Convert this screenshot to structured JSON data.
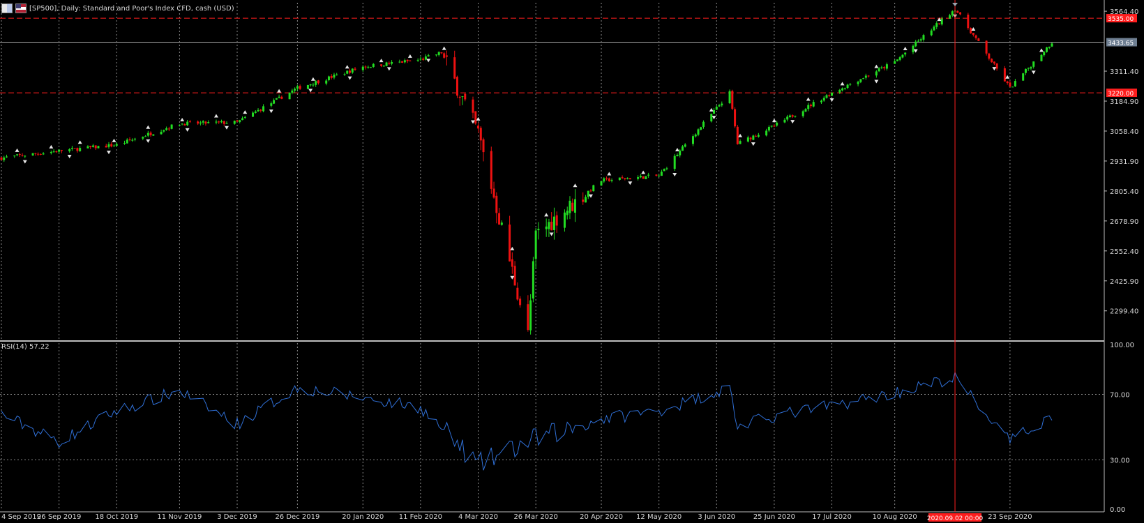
{
  "header": {
    "title": "[SP500], Daily:  Standard and Poor's Index CFD, cash (USD)",
    "flag_icons": [
      "symbol-flag-icon",
      "us-flag-icon"
    ]
  },
  "price_axis": {
    "labels": [
      "3564.40",
      "3311.40",
      "3184.90",
      "3058.40",
      "2931.90",
      "2805.40",
      "2678.90",
      "2552.40",
      "2425.90",
      "2299.40"
    ],
    "tick_values": [
      3564.4,
      3311.4,
      3184.9,
      3058.4,
      2931.9,
      2805.4,
      2678.9,
      2552.4,
      2425.9,
      2299.4
    ]
  },
  "current_price": {
    "value": 3433.65,
    "label": "3433.65"
  },
  "levels": [
    {
      "value": 3535,
      "label": "3535.00",
      "color": "#ff1e1e"
    },
    {
      "value": 3220,
      "label": "3220.00",
      "color": "#ff1e1e"
    }
  ],
  "time_axis": {
    "labels": [
      "4 Sep 2019",
      "26 Sep 2019",
      "18 Oct 2019",
      "11 Nov 2019",
      "3 Dec 2019",
      "26 Dec 2019",
      "20 Jan 2020",
      "11 Feb 2020",
      "4 Mar 2020",
      "26 Mar 2020",
      "20 Apr 2020",
      "12 May 2020",
      "3 Jun 2020",
      "25 Jun 2020",
      "17 Jul 2020",
      "10 Aug 2020",
      "23 Sep 2020"
    ],
    "crosshair_label": "2020.09.02 00:00"
  },
  "rsi": {
    "label": "RSI(14) 57.22",
    "axis_labels": [
      "100.00",
      "70.00",
      "30.00",
      "0.00"
    ],
    "axis_values": [
      100,
      70,
      30,
      0
    ],
    "color": "#2f6fd6"
  },
  "colors": {
    "bull": "#22dd22",
    "bear": "#ee1111",
    "grid": "#9a9a9a",
    "background": "#000000"
  },
  "chart_data": {
    "type": "candlestick",
    "title": "[SP500], Daily:  Standard and Poor's Index CFD, cash (USD)",
    "ylim": [
      2175,
      3600
    ],
    "anchors": [
      {
        "date": "4 Sep 2019",
        "close": 2945
      },
      {
        "date": "26 Sep 2019",
        "close": 2975
      },
      {
        "date": "18 Oct 2019",
        "close": 3000
      },
      {
        "date": "11 Nov 2019",
        "close": 3090
      },
      {
        "date": "3 Dec 2019",
        "close": 3095
      },
      {
        "date": "26 Dec 2019",
        "close": 3240
      },
      {
        "date": "20 Jan 2020",
        "close": 3330
      },
      {
        "date": "11 Feb 2020",
        "close": 3360
      },
      {
        "date": "19 Feb 2020",
        "close": 3390
      },
      {
        "date": "4 Mar 2020",
        "close": 3050
      },
      {
        "date": "23 Mar 2020",
        "close": 2200
      },
      {
        "date": "26 Mar 2020",
        "close": 2620
      },
      {
        "date": "20 Apr 2020",
        "close": 2850
      },
      {
        "date": "12 May 2020",
        "close": 2870
      },
      {
        "date": "8 Jun 2020",
        "close": 3220
      },
      {
        "date": "11 Jun 2020",
        "close": 3005
      },
      {
        "date": "25 Jun 2020",
        "close": 3080
      },
      {
        "date": "17 Jul 2020",
        "close": 3220
      },
      {
        "date": "10 Aug 2020",
        "close": 3350
      },
      {
        "date": "2 Sep 2020",
        "close": 3575
      },
      {
        "date": "23 Sep 2020",
        "close": 3240
      },
      {
        "date": "9 Oct 2020",
        "close": 3433.65
      }
    ],
    "rsi_series": {
      "name": "RSI(14)",
      "anchors": [
        {
          "date": "4 Sep 2019",
          "value": 58
        },
        {
          "date": "26 Sep 2019",
          "value": 41
        },
        {
          "date": "18 Oct 2019",
          "value": 60
        },
        {
          "date": "11 Nov 2019",
          "value": 72
        },
        {
          "date": "3 Dec 2019",
          "value": 52
        },
        {
          "date": "26 Dec 2019",
          "value": 74
        },
        {
          "date": "20 Jan 2020",
          "value": 68
        },
        {
          "date": "11 Feb 2020",
          "value": 62
        },
        {
          "date": "4 Mar 2020",
          "value": 27
        },
        {
          "date": "26 Mar 2020",
          "value": 43
        },
        {
          "date": "20 Apr 2020",
          "value": 55
        },
        {
          "date": "12 May 2020",
          "value": 60
        },
        {
          "date": "8 Jun 2020",
          "value": 74
        },
        {
          "date": "11 Jun 2020",
          "value": 50
        },
        {
          "date": "25 Jun 2020",
          "value": 57
        },
        {
          "date": "17 Jul 2020",
          "value": 63
        },
        {
          "date": "10 Aug 2020",
          "value": 71
        },
        {
          "date": "2 Sep 2020",
          "value": 80
        },
        {
          "date": "23 Sep 2020",
          "value": 41
        },
        {
          "date": "9 Oct 2020",
          "value": 57.22
        }
      ]
    }
  }
}
